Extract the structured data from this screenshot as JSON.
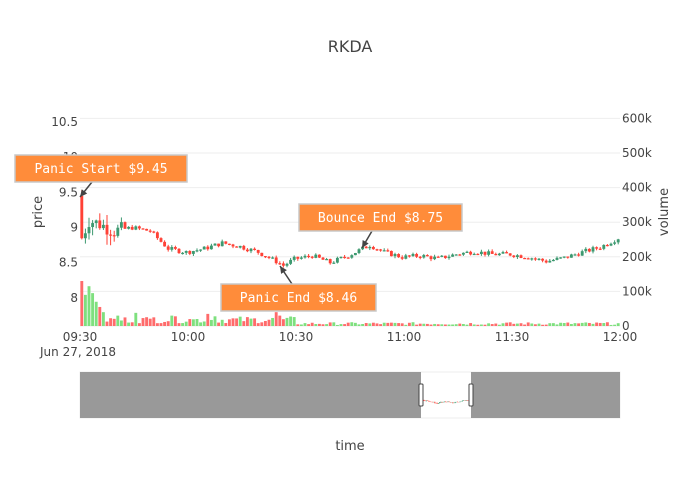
{
  "chart_data": {
    "type": "candlestick",
    "title": "RKDA",
    "xlabel": "time",
    "ylabel": "price",
    "y2label": "volume",
    "date_label": "Jun 27, 2018",
    "x_range": [
      "09:30",
      "12:00"
    ],
    "x_ticks": [
      {
        "time": "09:30",
        "label": "09:30"
      },
      {
        "time": "10:00",
        "label": "10:00"
      },
      {
        "time": "10:30",
        "label": "10:30"
      },
      {
        "time": "11:00",
        "label": "11:00"
      },
      {
        "time": "11:30",
        "label": "11:30"
      },
      {
        "time": "12:00",
        "label": "12:00"
      }
    ],
    "ylim": [
      7.6,
      10.7
    ],
    "y_ticks": [
      {
        "value": 8,
        "label": "8"
      },
      {
        "value": 8.5,
        "label": "8.5"
      },
      {
        "value": 9,
        "label": "9"
      },
      {
        "value": 9.5,
        "label": "9.5"
      },
      {
        "value": 10,
        "label": "10"
      },
      {
        "value": 10.5,
        "label": "10.5"
      }
    ],
    "y2lim": [
      0,
      630000
    ],
    "y2_ticks": [
      {
        "value": 0,
        "label": "0"
      },
      {
        "value": 100000,
        "label": "100k"
      },
      {
        "value": 200000,
        "label": "200k"
      },
      {
        "value": 300000,
        "label": "300k"
      },
      {
        "value": 400000,
        "label": "400k"
      },
      {
        "value": 500000,
        "label": "500k"
      },
      {
        "value": 600000,
        "label": "600k"
      }
    ],
    "price_path": [
      {
        "time": "09:30",
        "price": 9.45
      },
      {
        "time": "09:31",
        "price": 8.85
      },
      {
        "time": "09:33",
        "price": 9.1
      },
      {
        "time": "09:36",
        "price": 9.05
      },
      {
        "time": "09:40",
        "price": 8.95
      },
      {
        "time": "09:45",
        "price": 9.0
      },
      {
        "time": "09:50",
        "price": 8.95
      },
      {
        "time": "09:55",
        "price": 8.7
      },
      {
        "time": "10:00",
        "price": 8.65
      },
      {
        "time": "10:05",
        "price": 8.7
      },
      {
        "time": "10:10",
        "price": 8.78
      },
      {
        "time": "10:15",
        "price": 8.73
      },
      {
        "time": "10:20",
        "price": 8.65
      },
      {
        "time": "10:25",
        "price": 8.52
      },
      {
        "time": "10:27",
        "price": 8.46
      },
      {
        "time": "10:30",
        "price": 8.55
      },
      {
        "time": "10:35",
        "price": 8.6
      },
      {
        "time": "10:40",
        "price": 8.5
      },
      {
        "time": "10:45",
        "price": 8.6
      },
      {
        "time": "10:51",
        "price": 8.75
      },
      {
        "time": "10:55",
        "price": 8.65
      },
      {
        "time": "11:00",
        "price": 8.58
      },
      {
        "time": "11:05",
        "price": 8.6
      },
      {
        "time": "11:10",
        "price": 8.56
      },
      {
        "time": "11:15",
        "price": 8.62
      },
      {
        "time": "11:20",
        "price": 8.66
      },
      {
        "time": "11:25",
        "price": 8.62
      },
      {
        "time": "11:30",
        "price": 8.62
      },
      {
        "time": "11:35",
        "price": 8.58
      },
      {
        "time": "11:40",
        "price": 8.52
      },
      {
        "time": "11:45",
        "price": 8.57
      },
      {
        "time": "11:50",
        "price": 8.65
      },
      {
        "time": "11:55",
        "price": 8.72
      },
      {
        "time": "12:00",
        "price": 8.85
      }
    ],
    "volume_highlights": [
      {
        "time": "09:30",
        "volume": 130000
      },
      {
        "time": "09:31",
        "volume": 90000
      },
      {
        "time": "09:32",
        "volume": 115000
      },
      {
        "time": "09:33",
        "volume": 95000
      },
      {
        "time": "09:34",
        "volume": 70000
      },
      {
        "time": "09:35",
        "volume": 55000
      },
      {
        "time": "09:36",
        "volume": 40000
      },
      {
        "time": "09:40",
        "volume": 30000
      },
      {
        "time": "09:45",
        "volume": 38000
      },
      {
        "time": "09:50",
        "volume": 25000
      },
      {
        "time": "09:55",
        "volume": 30000
      },
      {
        "time": "10:00",
        "volume": 20000
      },
      {
        "time": "10:05",
        "volume": 35000
      },
      {
        "time": "10:07",
        "volume": 28000
      },
      {
        "time": "10:24",
        "volume": 40000
      },
      {
        "time": "10:25",
        "volume": 30000
      }
    ],
    "colors": {
      "increasing": "#3d9970",
      "decreasing": "#ff4136",
      "volume_increasing": "#7ee07e",
      "volume_decreasing": "#ff6b6b",
      "annotation_bg": "#ff8c3a",
      "annotation_border": "#c8c8c8",
      "rangeslider_mask": "#999999"
    },
    "annotations": [
      {
        "text": "Panic Start $9.45",
        "time": "09:30",
        "price": 9.45
      },
      {
        "text": "Panic End $8.46",
        "time": "10:27",
        "price": 8.46
      },
      {
        "text": "Bounce End $8.75",
        "time": "10:51",
        "price": 8.75
      }
    ],
    "rangeslider": {
      "visible_window": [
        "09:30",
        "12:00"
      ]
    }
  }
}
